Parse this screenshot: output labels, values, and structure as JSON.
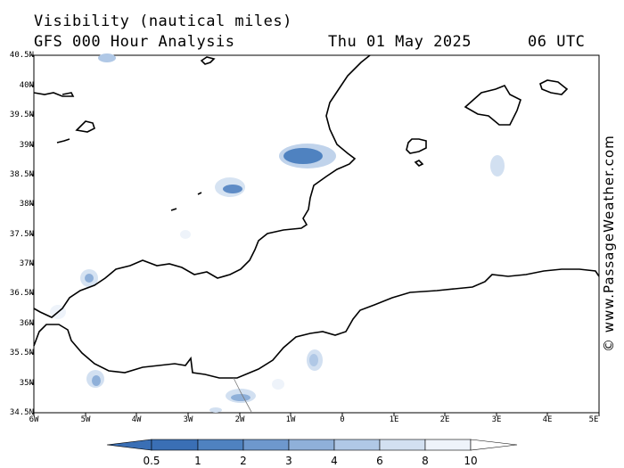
{
  "header": {
    "title": "Visibility (nautical miles)",
    "subtitle": "GFS 000 Hour Analysis",
    "date": "Thu 01 May 2025",
    "time": "06 UTC"
  },
  "credit": "© www.PassageWeather.com",
  "axes": {
    "lat_labels": [
      "40.5N",
      "40N",
      "39.5N",
      "39N",
      "38.5N",
      "38N",
      "37.5N",
      "37N",
      "36.5N",
      "36N",
      "35.5N",
      "35N",
      "34.5N"
    ],
    "lon_labels": [
      "6W",
      "5W",
      "4W",
      "3W",
      "2W",
      "1W",
      "0",
      "1E",
      "2E",
      "3E",
      "4E",
      "5E"
    ]
  },
  "colorbar": {
    "labels": [
      "0.5",
      "1",
      "2",
      "3",
      "4",
      "6",
      "8",
      "10"
    ],
    "colors": [
      "#3a6fb5",
      "#4f82c0",
      "#6e98cd",
      "#8fb0d9",
      "#b0c8e6",
      "#d2e0f1",
      "#eef3fa",
      "#ffffff"
    ]
  }
}
